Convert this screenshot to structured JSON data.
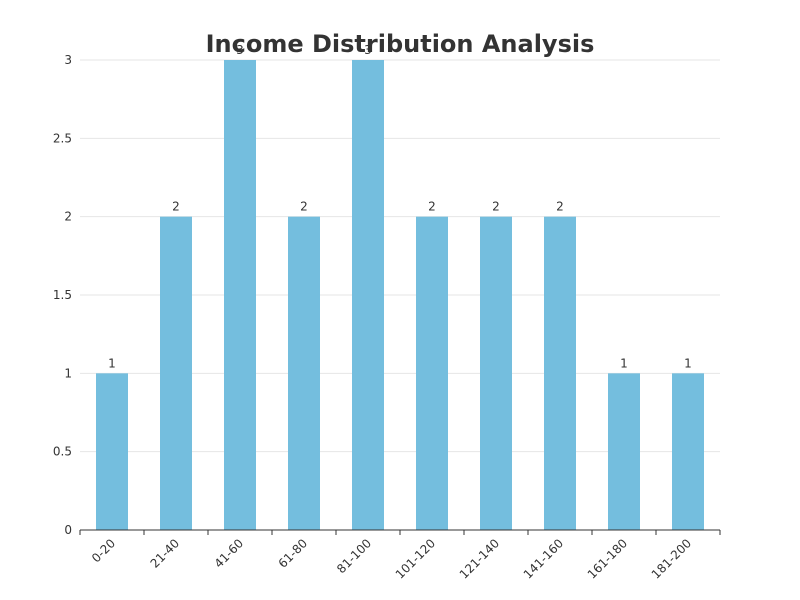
{
  "chart_data": {
    "type": "bar",
    "title": "Income Distribution Analysis",
    "xlabel": "",
    "ylabel": "",
    "categories": [
      "0-20",
      "21-40",
      "41-60",
      "61-80",
      "81-100",
      "101-120",
      "121-140",
      "141-160",
      "161-180",
      "181-200"
    ],
    "values": [
      1,
      2,
      3,
      2,
      3,
      2,
      2,
      2,
      1,
      1
    ],
    "data_labels": [
      "1",
      "2",
      "3",
      "2",
      "3",
      "2",
      "2",
      "2",
      "1",
      "1"
    ],
    "ylim": [
      0,
      3
    ],
    "yticks": [
      0,
      0.5,
      1,
      1.5,
      2,
      2.5,
      3
    ],
    "ytick_labels": [
      "0",
      "0.5",
      "1",
      "1.5",
      "2",
      "2.5",
      "3"
    ],
    "grid": true,
    "legend": "none",
    "colors": {
      "bar": "#74bede",
      "grid": "#e6e6e6",
      "axis": "#333333",
      "text": "#333333"
    }
  }
}
